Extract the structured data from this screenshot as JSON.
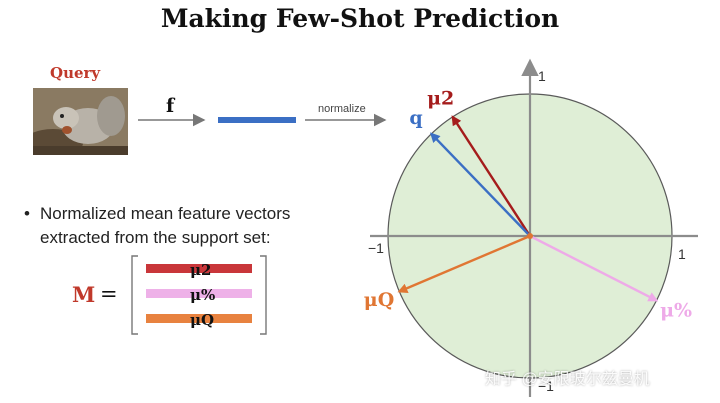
{
  "title": "Making Few-Shot Prediction",
  "query_label": "Query",
  "feature_fn_label": "f",
  "normalize_label": "normalize",
  "bullet": {
    "line1": "Normalized mean feature vectors",
    "line2": "extracted from the support set:"
  },
  "matrix": {
    "symbol": "M",
    "equals": "=",
    "rows": [
      {
        "label": "μ2",
        "color": "#c9363a"
      },
      {
        "label": "μ%",
        "color": "#eeb1e8"
      },
      {
        "label": "μQ",
        "color": "#e8823f"
      }
    ]
  },
  "axes": {
    "tick_pos_y": "1",
    "tick_neg_x": "−1",
    "tick_pos_x": "1",
    "tick_neg_y": "−1"
  },
  "vectors": [
    {
      "name": "mu2",
      "label": "μ2",
      "color": "#a51c1c",
      "angle_deg": 123
    },
    {
      "name": "q",
      "label": "q",
      "color": "#3b6fc4",
      "angle_deg": 134
    },
    {
      "name": "muQ",
      "label": "μQ",
      "color": "#e07633",
      "angle_deg": 203
    },
    {
      "name": "muPct",
      "label": "μ%",
      "color": "#eeaae8",
      "angle_deg": 333
    }
  ],
  "colors": {
    "circle_fill": "#dfeed6",
    "circle_stroke": "#5a5a5a",
    "axis": "#8c8c8c",
    "feature_bar": "#3b6fc4"
  },
  "watermark": "知乎 @安限玻尔兹曼机"
}
